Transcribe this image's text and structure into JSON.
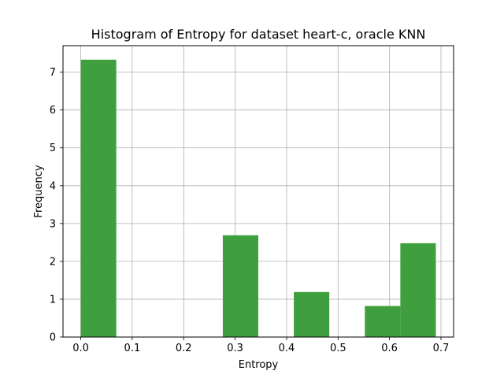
{
  "chart_data": {
    "type": "bar",
    "title": "Histogram of Entropy for dataset heart-c, oracle KNN",
    "xlabel": "Entropy",
    "ylabel": "Frequency",
    "xlim": [
      -0.0345,
      0.7245
    ],
    "ylim": [
      0,
      7.7
    ],
    "grid": true,
    "bar_color": "#3f9f3f",
    "bins": [
      {
        "x0": 0.0,
        "x1": 0.069,
        "value": 7.33
      },
      {
        "x0": 0.069,
        "x1": 0.138,
        "value": 0
      },
      {
        "x0": 0.138,
        "x1": 0.207,
        "value": 0
      },
      {
        "x0": 0.207,
        "x1": 0.276,
        "value": 0
      },
      {
        "x0": 0.276,
        "x1": 0.345,
        "value": 2.69
      },
      {
        "x0": 0.345,
        "x1": 0.414,
        "value": 0
      },
      {
        "x0": 0.414,
        "x1": 0.483,
        "value": 1.19
      },
      {
        "x0": 0.483,
        "x1": 0.552,
        "value": 0
      },
      {
        "x0": 0.552,
        "x1": 0.621,
        "value": 0.82
      },
      {
        "x0": 0.621,
        "x1": 0.69,
        "value": 2.48
      }
    ],
    "xticks": [
      0.0,
      0.1,
      0.2,
      0.3,
      0.4,
      0.5,
      0.6,
      0.7
    ],
    "xtick_labels": [
      "0.0",
      "0.1",
      "0.2",
      "0.3",
      "0.4",
      "0.5",
      "0.6",
      "0.7"
    ],
    "yticks": [
      0,
      1,
      2,
      3,
      4,
      5,
      6,
      7
    ],
    "ytick_labels": [
      "0",
      "1",
      "2",
      "3",
      "4",
      "5",
      "6",
      "7"
    ]
  }
}
